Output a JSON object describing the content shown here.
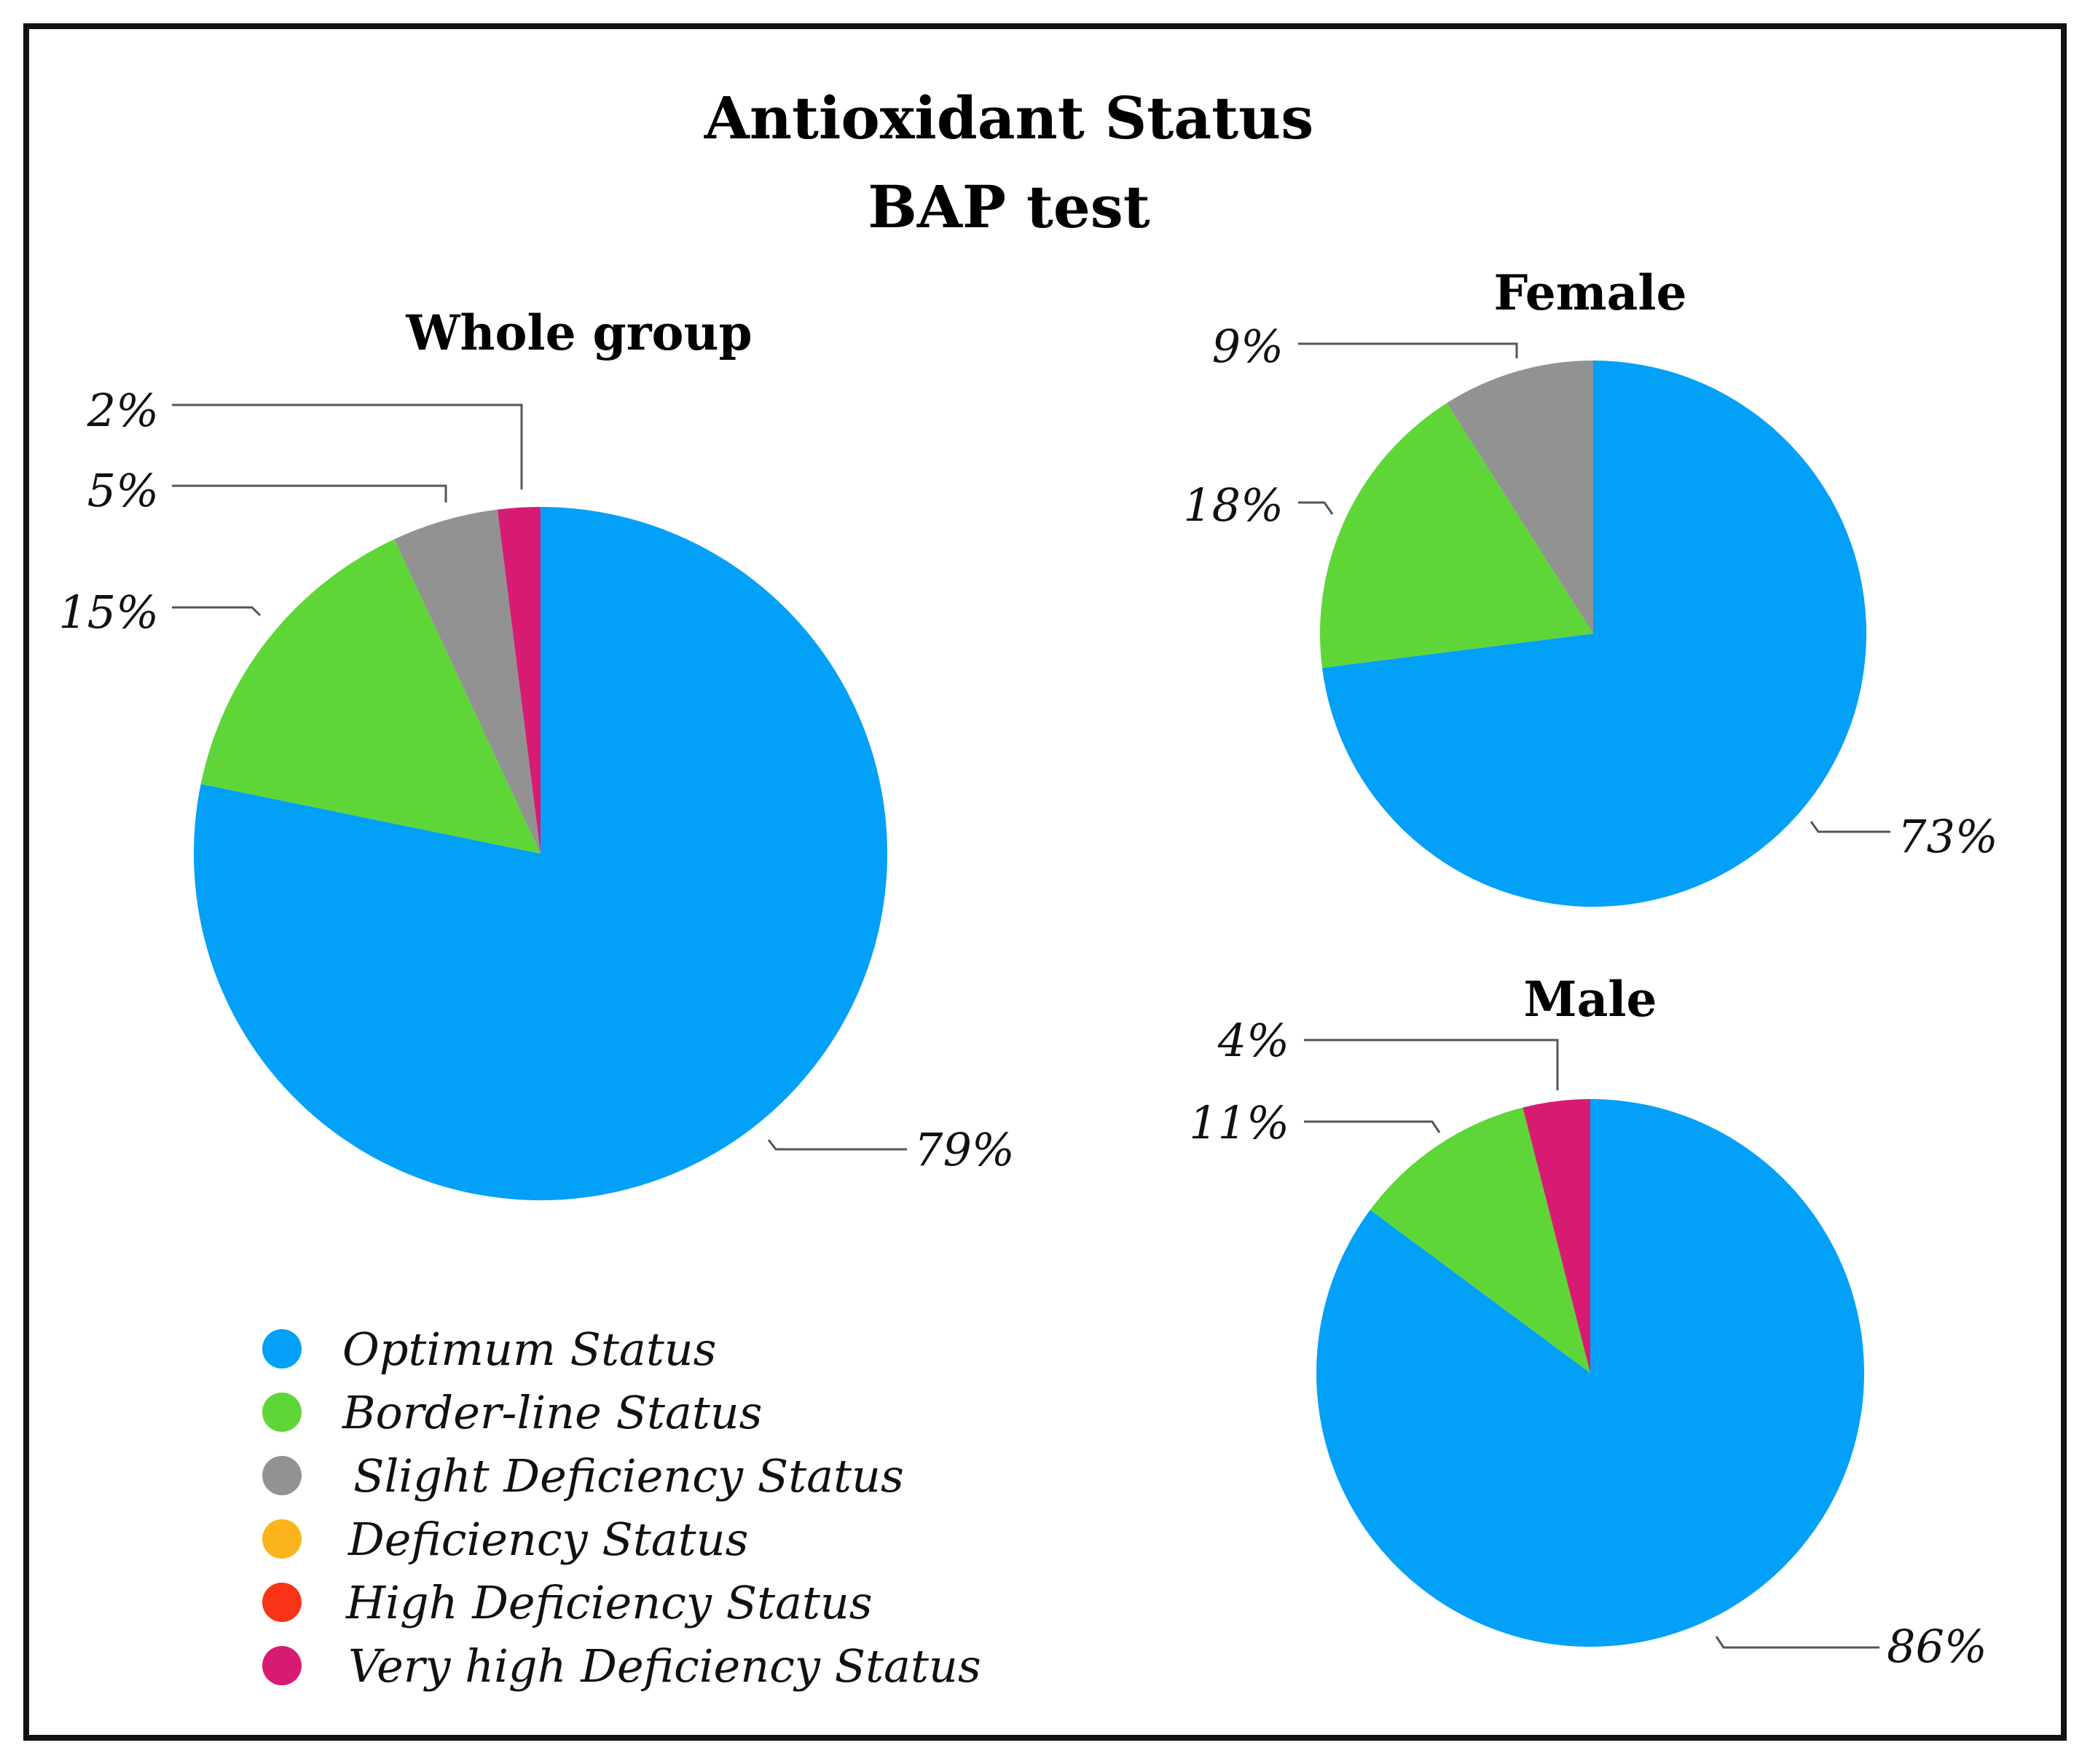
{
  "title_line1": "Antioxidant Status",
  "title_line2": "BAP test",
  "legend": [
    {
      "label": "Optimum Status",
      "color": "#03a0f8"
    },
    {
      "label": "Border-line Status",
      "color": "#5fd637"
    },
    {
      "label": "Slight Deficiency Status",
      "color": "#929292"
    },
    {
      "label": "Deficiency Status",
      "color": "#fbb41b"
    },
    {
      "label": "High Deficiency Status",
      "color": "#f93416"
    },
    {
      "label": "Very high Deficiency Status",
      "color": "#d71b73"
    }
  ],
  "chart_data": [
    {
      "type": "pie",
      "title": "Whole group",
      "slices": [
        {
          "category": "Optimum Status",
          "value": 79,
          "label": "79%",
          "color": "#03a0f8"
        },
        {
          "category": "Border-line Status",
          "value": 15,
          "label": "15%",
          "color": "#5fd637"
        },
        {
          "category": "Slight Deficiency Status",
          "value": 5,
          "label": "5%",
          "color": "#929292"
        },
        {
          "category": "Very high Deficiency Status",
          "value": 2,
          "label": "2%",
          "color": "#d71b73"
        }
      ]
    },
    {
      "type": "pie",
      "title": "Female",
      "slices": [
        {
          "category": "Optimum Status",
          "value": 73,
          "label": "73%",
          "color": "#03a0f8"
        },
        {
          "category": "Border-line Status",
          "value": 18,
          "label": "18%",
          "color": "#5fd637"
        },
        {
          "category": "Slight Deficiency Status",
          "value": 9,
          "label": "9%",
          "color": "#929292"
        }
      ]
    },
    {
      "type": "pie",
      "title": "Male",
      "slices": [
        {
          "category": "Optimum Status",
          "value": 86,
          "label": "86%",
          "color": "#03a0f8"
        },
        {
          "category": "Border-line Status",
          "value": 11,
          "label": "11%",
          "color": "#5fd637"
        },
        {
          "category": "Very high Deficiency Status",
          "value": 4,
          "label": "4%",
          "color": "#d71b73"
        }
      ]
    }
  ]
}
